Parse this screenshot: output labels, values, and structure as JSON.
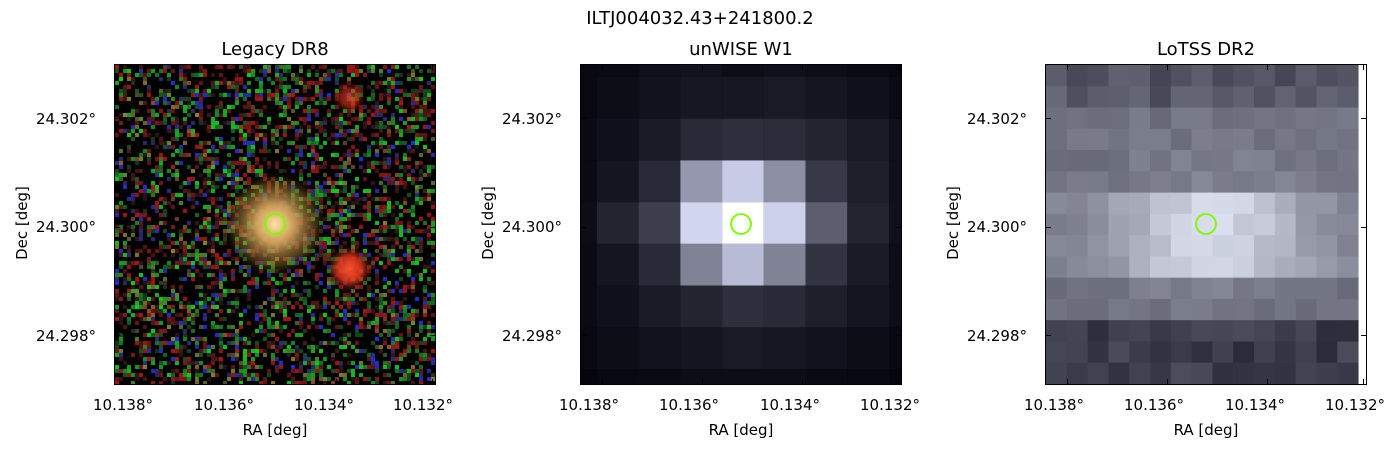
{
  "figure": {
    "suptitle": "ILTJ004032.43+241800.2"
  },
  "panels": [
    {
      "title": "Legacy DR8",
      "xlabel": "RA [deg]",
      "ylabel": "Dec [deg]",
      "xticks": [
        "10.138°",
        "10.136°",
        "10.134°",
        "10.132°"
      ],
      "yticks": [
        "24.302°",
        "24.300°",
        "24.298°"
      ],
      "colormap": "RGB composite",
      "marker": {
        "shape": "circle",
        "color": "#7CFC00"
      }
    },
    {
      "title": "unWISE W1",
      "xlabel": "RA [deg]",
      "ylabel": "Dec [deg]",
      "xticks": [
        "10.138°",
        "10.136°",
        "10.134°",
        "10.132°"
      ],
      "yticks": [
        "24.302°",
        "24.300°",
        "24.298°"
      ],
      "colormap": "bone",
      "marker": {
        "shape": "circle",
        "color": "#7CFC00"
      }
    },
    {
      "title": "LoTSS DR2",
      "xlabel": "RA [deg]",
      "ylabel": "Dec [deg]",
      "xticks": [
        "10.138°",
        "10.136°",
        "10.134°",
        "10.132°"
      ],
      "yticks": [
        "24.302°",
        "24.300°",
        "24.298°"
      ],
      "colormap": "bone",
      "marker": {
        "shape": "circle",
        "color": "#7CFC00"
      }
    }
  ]
}
